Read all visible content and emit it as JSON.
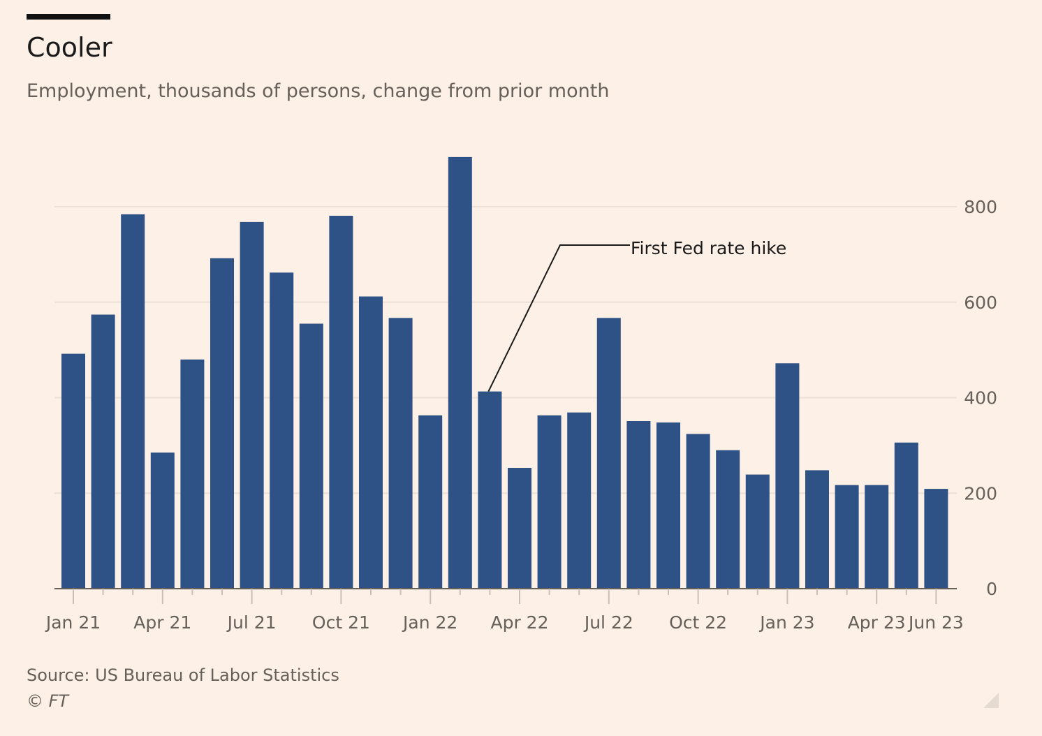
{
  "header": {
    "title": "Cooler",
    "subtitle": "Employment, thousands of persons, change from prior month"
  },
  "footer": {
    "source": "Source: US Bureau of Labor Statistics",
    "copyright": "© FT"
  },
  "colors": {
    "background": "#fdf0e6",
    "bar": "#2e5285",
    "gridline": "#ebe0d7",
    "axis": "#66605a",
    "text": "#1a1a1a"
  },
  "chart_data": {
    "type": "bar",
    "x": [
      "Jan 21",
      "Feb 21",
      "Mar 21",
      "Apr 21",
      "May 21",
      "Jun 21",
      "Jul 21",
      "Aug 21",
      "Sep 21",
      "Oct 21",
      "Nov 21",
      "Dec 21",
      "Jan 22",
      "Feb 22",
      "Mar 22",
      "Apr 22",
      "May 22",
      "Jun 22",
      "Jul 22",
      "Aug 22",
      "Sep 22",
      "Oct 22",
      "Nov 22",
      "Dec 22",
      "Jan 23",
      "Feb 23",
      "Mar 23",
      "Apr 23",
      "May 23",
      "Jun 23"
    ],
    "values": [
      492,
      574,
      784,
      285,
      480,
      692,
      768,
      662,
      555,
      781,
      612,
      567,
      363,
      904,
      413,
      253,
      363,
      369,
      567,
      351,
      348,
      324,
      290,
      239,
      472,
      248,
      217,
      217,
      306,
      209
    ],
    "x_tick_labels": [
      {
        "label": "Jan 21",
        "month": "Jan 21"
      },
      {
        "label": "Apr 21",
        "month": "Apr 21"
      },
      {
        "label": "Jul 21",
        "month": "Jul 21"
      },
      {
        "label": "Oct 21",
        "month": "Oct 21"
      },
      {
        "label": "Jan 22",
        "month": "Jan 22"
      },
      {
        "label": "Apr 22",
        "month": "Apr 22"
      },
      {
        "label": "Jul 22",
        "month": "Jul 22"
      },
      {
        "label": "Oct 22",
        "month": "Oct 22"
      },
      {
        "label": "Jan 23",
        "month": "Jan 23"
      },
      {
        "label": "Apr 23",
        "month": "Apr 23"
      },
      {
        "label": "Jun 23",
        "month": "Jun 23"
      }
    ],
    "y_ticks": [
      0,
      200,
      400,
      600,
      800
    ],
    "ylim": [
      0,
      900
    ],
    "y_axis_side": "right",
    "grid": true,
    "annotation": {
      "text": "First Fed rate hike",
      "month": "Mar 22"
    },
    "title": "Cooler",
    "subtitle": "Employment, thousands of persons, change from prior month",
    "xlabel": "",
    "ylabel": ""
  }
}
